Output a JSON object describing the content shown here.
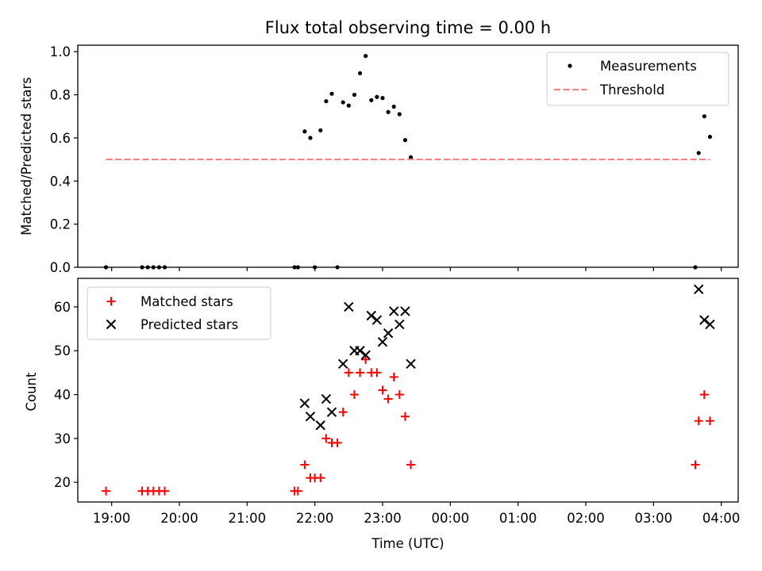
{
  "chart_data": [
    {
      "type": "scatter",
      "title": "Flux total observing time = 0.00 h",
      "xlabel": "",
      "ylabel": "Matched/Predicted stars",
      "xlim": [
        "18:30",
        "04:15"
      ],
      "ylim": [
        0,
        1.03
      ],
      "yticks": [
        "0.0",
        "0.2",
        "0.4",
        "0.6",
        "0.8",
        "1.0"
      ],
      "legend_position": "top-right",
      "series": [
        {
          "name": "Measurements",
          "kind": "scatter",
          "color": "#000000",
          "points": [
            {
              "x": "18:55",
              "y": 0.0
            },
            {
              "x": "19:27",
              "y": 0.0
            },
            {
              "x": "19:32",
              "y": 0.0
            },
            {
              "x": "19:37",
              "y": 0.0
            },
            {
              "x": "19:42",
              "y": 0.0
            },
            {
              "x": "19:47",
              "y": 0.0
            },
            {
              "x": "21:42",
              "y": 0.0
            },
            {
              "x": "21:45",
              "y": 0.0
            },
            {
              "x": "21:51",
              "y": 0.63
            },
            {
              "x": "21:56",
              "y": 0.6
            },
            {
              "x": "22:00",
              "y": 0.0
            },
            {
              "x": "22:05",
              "y": 0.635
            },
            {
              "x": "22:10",
              "y": 0.77
            },
            {
              "x": "22:15",
              "y": 0.805
            },
            {
              "x": "22:20",
              "y": 0.0
            },
            {
              "x": "22:25",
              "y": 0.765
            },
            {
              "x": "22:30",
              "y": 0.75
            },
            {
              "x": "22:35",
              "y": 0.8
            },
            {
              "x": "22:40",
              "y": 0.9
            },
            {
              "x": "22:45",
              "y": 0.98
            },
            {
              "x": "22:50",
              "y": 0.775
            },
            {
              "x": "22:55",
              "y": 0.79
            },
            {
              "x": "23:00",
              "y": 0.785
            },
            {
              "x": "23:05",
              "y": 0.72
            },
            {
              "x": "23:10",
              "y": 0.745
            },
            {
              "x": "23:15",
              "y": 0.71
            },
            {
              "x": "23:20",
              "y": 0.59
            },
            {
              "x": "23:25",
              "y": 0.51
            },
            {
              "x": "03:37",
              "y": 0.0
            },
            {
              "x": "03:40",
              "y": 0.53
            },
            {
              "x": "03:45",
              "y": 0.7
            },
            {
              "x": "03:50",
              "y": 0.605
            }
          ]
        },
        {
          "name": "Threshold",
          "kind": "line",
          "style": "dashed",
          "color": "#ff8080",
          "points": [
            {
              "x": "18:55",
              "y": 0.5
            },
            {
              "x": "03:50",
              "y": 0.5
            }
          ]
        }
      ]
    },
    {
      "type": "scatter",
      "title": "",
      "xlabel": "Time (UTC)",
      "ylabel": "Count",
      "xlim": [
        "18:30",
        "04:15"
      ],
      "ylim": [
        15.5,
        66.5
      ],
      "yticks": [
        "20",
        "30",
        "40",
        "50",
        "60"
      ],
      "xticks": [
        "19:00",
        "20:00",
        "21:00",
        "22:00",
        "23:00",
        "00:00",
        "01:00",
        "02:00",
        "03:00",
        "04:00"
      ],
      "legend_position": "top-left",
      "series": [
        {
          "name": "Matched stars",
          "marker": "plus",
          "color": "#ff0000",
          "points": [
            {
              "x": "18:55",
              "y": 18
            },
            {
              "x": "19:27",
              "y": 18
            },
            {
              "x": "19:32",
              "y": 18
            },
            {
              "x": "19:37",
              "y": 18
            },
            {
              "x": "19:42",
              "y": 18
            },
            {
              "x": "19:47",
              "y": 18
            },
            {
              "x": "21:42",
              "y": 18
            },
            {
              "x": "21:45",
              "y": 18
            },
            {
              "x": "21:51",
              "y": 24
            },
            {
              "x": "21:56",
              "y": 21
            },
            {
              "x": "22:00",
              "y": 21
            },
            {
              "x": "22:05",
              "y": 21
            },
            {
              "x": "22:10",
              "y": 30
            },
            {
              "x": "22:15",
              "y": 29
            },
            {
              "x": "22:20",
              "y": 29
            },
            {
              "x": "22:25",
              "y": 36
            },
            {
              "x": "22:30",
              "y": 45
            },
            {
              "x": "22:35",
              "y": 40
            },
            {
              "x": "22:40",
              "y": 45
            },
            {
              "x": "22:45",
              "y": 48
            },
            {
              "x": "22:50",
              "y": 45
            },
            {
              "x": "22:55",
              "y": 45
            },
            {
              "x": "23:00",
              "y": 41
            },
            {
              "x": "23:05",
              "y": 39
            },
            {
              "x": "23:10",
              "y": 44
            },
            {
              "x": "23:15",
              "y": 40
            },
            {
              "x": "23:20",
              "y": 35
            },
            {
              "x": "23:25",
              "y": 24
            },
            {
              "x": "03:37",
              "y": 24
            },
            {
              "x": "03:40",
              "y": 34
            },
            {
              "x": "03:45",
              "y": 40
            },
            {
              "x": "03:50",
              "y": 34
            }
          ]
        },
        {
          "name": "Predicted stars",
          "marker": "x",
          "color": "#000000",
          "points": [
            {
              "x": "21:51",
              "y": 38
            },
            {
              "x": "21:56",
              "y": 35
            },
            {
              "x": "22:05",
              "y": 33
            },
            {
              "x": "22:10",
              "y": 39
            },
            {
              "x": "22:15",
              "y": 36
            },
            {
              "x": "22:25",
              "y": 47
            },
            {
              "x": "22:30",
              "y": 60
            },
            {
              "x": "22:35",
              "y": 50
            },
            {
              "x": "22:40",
              "y": 50
            },
            {
              "x": "22:45",
              "y": 49
            },
            {
              "x": "22:50",
              "y": 58
            },
            {
              "x": "22:55",
              "y": 57
            },
            {
              "x": "23:00",
              "y": 52
            },
            {
              "x": "23:05",
              "y": 54
            },
            {
              "x": "23:10",
              "y": 59
            },
            {
              "x": "23:15",
              "y": 56
            },
            {
              "x": "23:20",
              "y": 59
            },
            {
              "x": "23:25",
              "y": 47
            },
            {
              "x": "03:40",
              "y": 64
            },
            {
              "x": "03:45",
              "y": 57
            },
            {
              "x": "03:50",
              "y": 56
            }
          ]
        }
      ]
    }
  ]
}
